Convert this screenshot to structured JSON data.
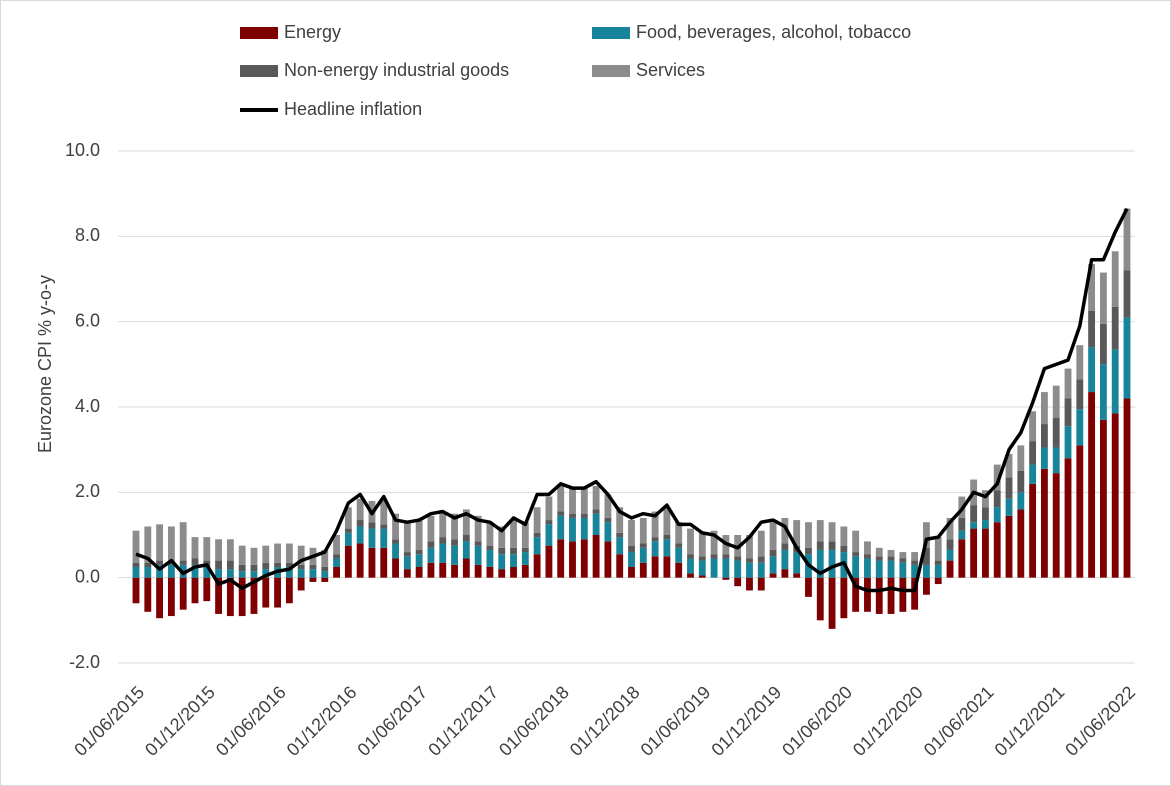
{
  "chart_data": {
    "type": "bar",
    "stacked": true,
    "y_label": "Eurozone CPI % y-o-y",
    "ylim": [
      -2,
      10
    ],
    "yticks": [
      {
        "value": -2,
        "label": "-2.0"
      },
      {
        "value": 0,
        "label": "0.0"
      },
      {
        "value": 2,
        "label": "2.0"
      },
      {
        "value": 4,
        "label": "4.0"
      },
      {
        "value": 6,
        "label": "6.0"
      },
      {
        "value": 8,
        "label": "8.0"
      },
      {
        "value": 10,
        "label": "10.0"
      }
    ],
    "grid": true,
    "legend": "top",
    "categories": [
      "01/06/2015",
      null,
      null,
      null,
      null,
      null,
      "01/12/2015",
      null,
      null,
      null,
      null,
      null,
      "01/06/2016",
      null,
      null,
      null,
      null,
      null,
      "01/12/2016",
      null,
      null,
      null,
      null,
      null,
      "01/06/2017",
      null,
      null,
      null,
      null,
      null,
      "01/12/2017",
      null,
      null,
      null,
      null,
      null,
      "01/06/2018",
      null,
      null,
      null,
      null,
      null,
      "01/12/2018",
      null,
      null,
      null,
      null,
      null,
      "01/06/2019",
      null,
      null,
      null,
      null,
      null,
      "01/12/2019",
      null,
      null,
      null,
      null,
      null,
      "01/06/2020",
      null,
      null,
      null,
      null,
      null,
      "01/12/2020",
      null,
      null,
      null,
      null,
      null,
      "01/06/2021",
      null,
      null,
      null,
      null,
      null,
      "01/12/2021",
      null,
      null,
      null,
      null,
      null,
      "01/06/2022"
    ],
    "series": [
      {
        "name": "Energy",
        "color": "#7f0000",
        "values": [
          -0.6,
          -0.8,
          -0.95,
          -0.9,
          -0.75,
          -0.6,
          -0.55,
          -0.85,
          -0.9,
          -0.9,
          -0.85,
          -0.7,
          -0.7,
          -0.6,
          -0.3,
          -0.1,
          -0.1,
          0.25,
          0.75,
          0.8,
          0.7,
          0.7,
          0.45,
          0.2,
          0.25,
          0.35,
          0.35,
          0.3,
          0.45,
          0.3,
          0.25,
          0.2,
          0.25,
          0.3,
          0.55,
          0.75,
          0.9,
          0.85,
          0.9,
          1.0,
          0.85,
          0.55,
          0.25,
          0.35,
          0.5,
          0.5,
          0.35,
          0.1,
          0.05,
          0.0,
          -0.05,
          -0.2,
          -0.3,
          -0.3,
          0.1,
          0.2,
          0.1,
          -0.45,
          -1.0,
          -1.2,
          -0.95,
          -0.8,
          -0.8,
          -0.85,
          -0.85,
          -0.8,
          -0.75,
          -0.4,
          -0.15,
          0.4,
          0.9,
          1.15,
          1.15,
          1.3,
          1.45,
          1.6,
          2.2,
          2.55,
          2.45,
          2.8,
          3.1,
          4.35,
          3.7,
          3.85,
          4.2
        ]
      },
      {
        "name": "Food, beverages, alcohol, tobacco",
        "color": "#17849a",
        "values": [
          0.25,
          0.25,
          0.3,
          0.3,
          0.3,
          0.3,
          0.25,
          0.2,
          0.2,
          0.15,
          0.15,
          0.2,
          0.25,
          0.25,
          0.2,
          0.2,
          0.15,
          0.2,
          0.3,
          0.4,
          0.45,
          0.45,
          0.35,
          0.3,
          0.3,
          0.35,
          0.45,
          0.45,
          0.4,
          0.45,
          0.4,
          0.35,
          0.3,
          0.3,
          0.4,
          0.5,
          0.55,
          0.55,
          0.5,
          0.5,
          0.45,
          0.4,
          0.35,
          0.35,
          0.35,
          0.4,
          0.35,
          0.35,
          0.35,
          0.45,
          0.45,
          0.4,
          0.35,
          0.35,
          0.4,
          0.45,
          0.5,
          0.55,
          0.65,
          0.65,
          0.6,
          0.5,
          0.45,
          0.4,
          0.4,
          0.35,
          0.3,
          0.3,
          0.3,
          0.25,
          0.2,
          0.15,
          0.2,
          0.35,
          0.4,
          0.4,
          0.45,
          0.5,
          0.6,
          0.75,
          0.85,
          1.05,
          1.3,
          1.5,
          1.9
        ]
      },
      {
        "name": "Non-energy industrial goods",
        "color": "#595959",
        "values": [
          0.1,
          0.1,
          0.1,
          0.1,
          0.1,
          0.15,
          0.15,
          0.2,
          0.2,
          0.15,
          0.15,
          0.15,
          0.1,
          0.1,
          0.1,
          0.1,
          0.1,
          0.1,
          0.1,
          0.15,
          0.15,
          0.1,
          0.1,
          0.1,
          0.1,
          0.15,
          0.15,
          0.15,
          0.15,
          0.1,
          0.1,
          0.15,
          0.15,
          0.1,
          0.1,
          0.1,
          0.1,
          0.1,
          0.1,
          0.1,
          0.1,
          0.1,
          0.15,
          0.1,
          0.1,
          0.1,
          0.1,
          0.1,
          0.1,
          0.1,
          0.1,
          0.1,
          0.1,
          0.15,
          0.15,
          0.15,
          0.15,
          0.15,
          0.2,
          0.2,
          0.15,
          0.1,
          0.1,
          0.1,
          0.1,
          0.1,
          0.1,
          0.4,
          0.1,
          0.25,
          0.3,
          0.4,
          0.3,
          0.4,
          0.5,
          0.5,
          0.55,
          0.55,
          0.7,
          0.65,
          0.7,
          0.85,
          0.95,
          1.0,
          1.1
        ]
      },
      {
        "name": "Services",
        "color": "#8c8c8c",
        "values": [
          0.75,
          0.85,
          0.85,
          0.8,
          0.9,
          0.5,
          0.55,
          0.5,
          0.5,
          0.45,
          0.4,
          0.4,
          0.45,
          0.45,
          0.45,
          0.4,
          0.4,
          0.45,
          0.5,
          0.5,
          0.5,
          0.6,
          0.6,
          0.7,
          0.7,
          0.6,
          0.6,
          0.6,
          0.6,
          0.6,
          0.55,
          0.5,
          0.65,
          0.6,
          0.6,
          0.55,
          0.6,
          0.6,
          0.6,
          0.55,
          0.55,
          0.6,
          0.6,
          0.6,
          0.6,
          0.65,
          0.5,
          0.6,
          0.55,
          0.55,
          0.45,
          0.5,
          0.55,
          0.6,
          0.65,
          0.6,
          0.6,
          0.6,
          0.5,
          0.45,
          0.45,
          0.5,
          0.3,
          0.2,
          0.15,
          0.15,
          0.2,
          0.6,
          0.55,
          0.5,
          0.5,
          0.6,
          0.4,
          0.6,
          0.55,
          0.6,
          0.7,
          0.75,
          0.75,
          0.7,
          0.8,
          1.1,
          1.2,
          1.3,
          1.45
        ]
      },
      {
        "name": "Headline inflation",
        "color": "#000000",
        "type": "line",
        "values": [
          0.55,
          0.45,
          0.2,
          0.4,
          0.1,
          0.25,
          0.3,
          -0.15,
          -0.05,
          -0.25,
          -0.1,
          0.05,
          0.15,
          0.2,
          0.4,
          0.5,
          0.6,
          1.1,
          1.75,
          1.95,
          1.5,
          1.9,
          1.35,
          1.3,
          1.35,
          1.5,
          1.55,
          1.4,
          1.5,
          1.35,
          1.3,
          1.1,
          1.4,
          1.25,
          1.95,
          1.95,
          2.2,
          2.1,
          2.1,
          2.25,
          1.95,
          1.55,
          1.4,
          1.5,
          1.45,
          1.7,
          1.25,
          1.25,
          1.05,
          1.0,
          0.8,
          0.7,
          0.95,
          1.3,
          1.35,
          1.2,
          0.7,
          0.3,
          0.1,
          0.25,
          0.35,
          -0.2,
          -0.3,
          -0.3,
          -0.25,
          -0.3,
          -0.3,
          0.9,
          0.95,
          1.3,
          1.6,
          2.0,
          1.9,
          2.2,
          3.0,
          3.4,
          4.1,
          4.9,
          5.0,
          5.1,
          5.9,
          7.45,
          7.45,
          8.1,
          8.65
        ]
      }
    ]
  }
}
